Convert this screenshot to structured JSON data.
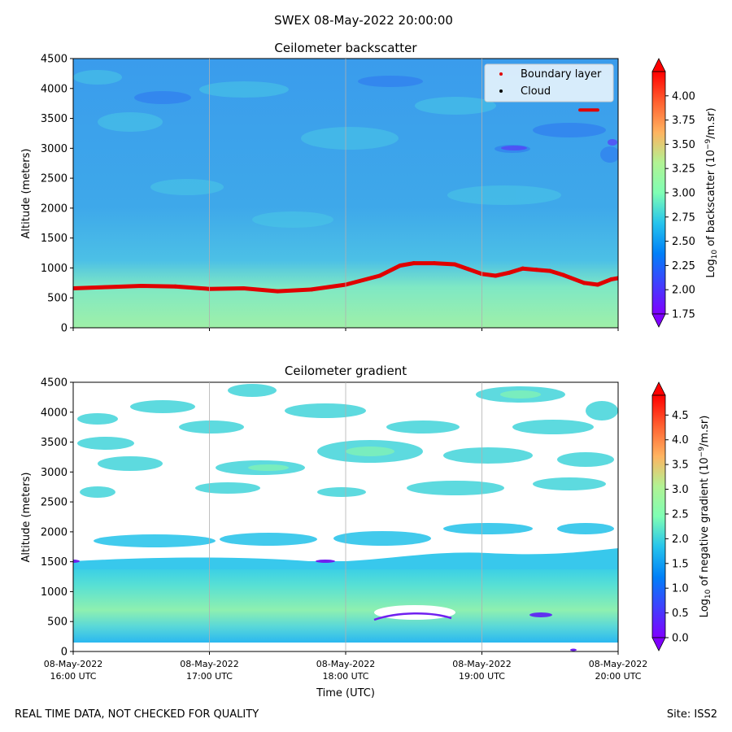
{
  "suptitle": "SWEX 08-May-2022 20:00:00",
  "footer_left": "REAL TIME DATA, NOT CHECKED FOR QUALITY",
  "footer_right": "Site: ISS2",
  "xlabel": "Time (UTC)",
  "x_ticks": [
    {
      "date": "08-May-2022",
      "time": "16:00 UTC"
    },
    {
      "date": "08-May-2022",
      "time": "17:00 UTC"
    },
    {
      "date": "08-May-2022",
      "time": "18:00 UTC"
    },
    {
      "date": "08-May-2022",
      "time": "19:00 UTC"
    },
    {
      "date": "08-May-2022",
      "time": "20:00 UTC"
    }
  ],
  "chart_data": [
    {
      "type": "heatmap",
      "title": "Ceilometer backscatter",
      "ylabel": "Altitude (meters)",
      "ylim": [
        0,
        4500
      ],
      "xlim_hours_utc": [
        16,
        20
      ],
      "y_ticks": [
        "0",
        "500",
        "1000",
        "1500",
        "2000",
        "2500",
        "3000",
        "3500",
        "4000",
        "4500"
      ],
      "colorbar": {
        "label": "Log10 of backscatter (10^-9/m.sr)",
        "range": [
          1.75,
          4.25
        ],
        "ticks": [
          "1.75",
          "2.00",
          "2.25",
          "2.50",
          "2.75",
          "3.00",
          "3.25",
          "3.50",
          "3.75",
          "4.00"
        ]
      },
      "legend": [
        {
          "label": "Boundary layer",
          "color": "#e00000"
        },
        {
          "label": "Cloud",
          "color": "#000000"
        }
      ],
      "boundary_layer": {
        "hours": [
          16.0,
          16.25,
          16.5,
          16.75,
          17.0,
          17.25,
          17.5,
          17.75,
          18.0,
          18.25,
          18.4,
          18.5,
          18.65,
          18.8,
          18.9,
          19.0,
          19.1,
          19.2,
          19.3,
          19.4,
          19.5,
          19.6,
          19.75,
          19.85,
          19.95,
          20.0
        ],
        "altitude_m": [
          660,
          680,
          700,
          690,
          650,
          660,
          610,
          640,
          720,
          870,
          1040,
          1080,
          1080,
          1060,
          980,
          900,
          870,
          920,
          990,
          970,
          950,
          880,
          750,
          720,
          810,
          830
        ]
      },
      "cloud_segment": {
        "hours": [
          19.72,
          19.85
        ],
        "altitude_m": 3640
      }
    },
    {
      "type": "heatmap",
      "title": "Ceilometer gradient",
      "ylabel": "Altitude (meters)",
      "ylim": [
        0,
        4500
      ],
      "xlim_hours_utc": [
        16,
        20
      ],
      "y_ticks": [
        "0",
        "500",
        "1000",
        "1500",
        "2000",
        "2500",
        "3000",
        "3500",
        "4000",
        "4500"
      ],
      "colorbar": {
        "label": "Log10 of negative gradient (10^-9/m.sr)",
        "range": [
          0.0,
          4.9
        ],
        "ticks": [
          "0.0",
          "0.5",
          "1.0",
          "1.5",
          "2.0",
          "2.5",
          "3.0",
          "3.5",
          "4.0",
          "4.5"
        ]
      }
    }
  ]
}
